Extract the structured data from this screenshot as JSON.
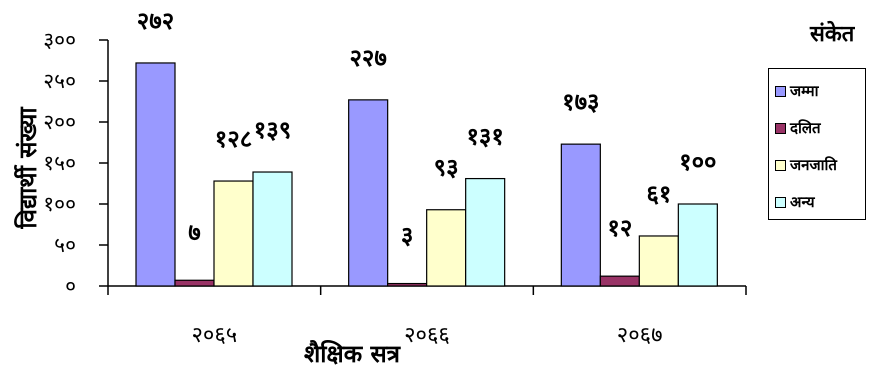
{
  "chart_data": {
    "type": "bar",
    "title": "",
    "xlabel": "शैक्षिक सत्र",
    "ylabel": "विद्यार्थी संख्या",
    "ylim": [
      0,
      300
    ],
    "yticks": [
      0,
      50,
      100,
      150,
      200,
      250,
      300
    ],
    "ytick_labels": [
      "०",
      "५०",
      "१००",
      "१५०",
      "२००",
      "२५०",
      "३००"
    ],
    "categories": [
      "२०६५",
      "२०६६",
      "२०६७"
    ],
    "series": [
      {
        "name": "जम्मा",
        "color": "#9999ff",
        "values": [
          272,
          227,
          173
        ],
        "labels": [
          "२७२",
          "२२७",
          "१७३"
        ]
      },
      {
        "name": "दलित",
        "color": "#993366",
        "values": [
          7,
          3,
          12
        ],
        "labels": [
          "७",
          "३",
          "१२"
        ]
      },
      {
        "name": "जनजाति",
        "color": "#ffffcc",
        "values": [
          128,
          93,
          61
        ],
        "labels": [
          "१२८",
          "९३",
          "६१"
        ]
      },
      {
        "name": "अन्य",
        "color": "#ccffff",
        "values": [
          139,
          131,
          100
        ],
        "labels": [
          "१३९",
          "१३१",
          "१००"
        ]
      }
    ],
    "legend_title": "संकेत",
    "legend_position": "right",
    "grid": false
  }
}
